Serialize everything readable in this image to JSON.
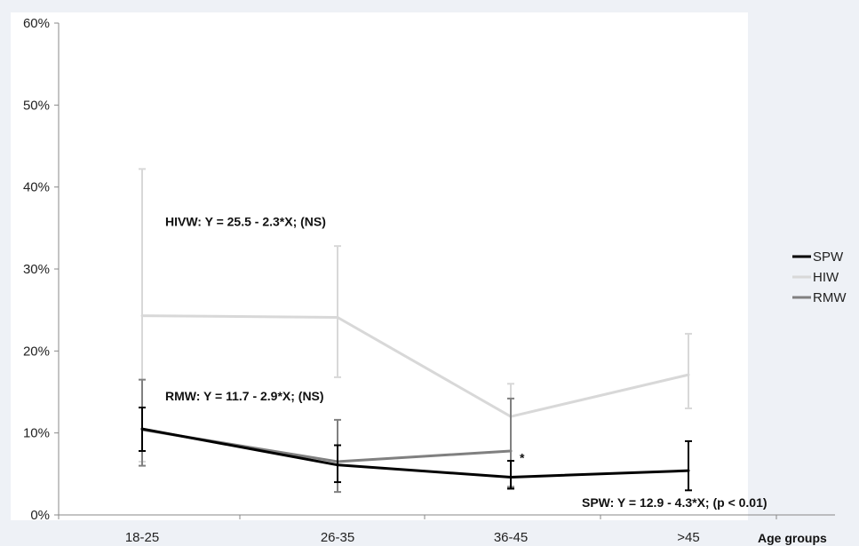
{
  "chart_data": {
    "type": "line",
    "categories": [
      "18-25",
      "26-35",
      "36-45",
      ">45"
    ],
    "xlabel": "Age groups",
    "ylabel": "",
    "ylim": [
      0,
      60
    ],
    "y_ticks": [
      "0%",
      "10%",
      "20%",
      "30%",
      "40%",
      "50%",
      "60%"
    ],
    "grid": false,
    "legend_position": "right",
    "series": [
      {
        "name": "SPW",
        "color": "#000000",
        "values": [
          10.5,
          6.1,
          4.6,
          5.4
        ],
        "error_low": [
          7.8,
          4.0,
          3.2,
          3.0
        ],
        "error_high": [
          13.1,
          8.5,
          6.6,
          9.0
        ]
      },
      {
        "name": "HIW",
        "color": "#d8d8d8",
        "values": [
          24.3,
          24.1,
          12.0,
          17.1
        ],
        "error_low": [
          6.5,
          16.8,
          3.5,
          13.0
        ],
        "error_high": [
          42.2,
          32.8,
          16.0,
          22.1
        ]
      },
      {
        "name": "RMW",
        "color": "#808080",
        "values": [
          10.4,
          6.5,
          7.8,
          null
        ],
        "error_low": [
          6.0,
          2.8,
          3.4,
          null
        ],
        "error_high": [
          16.5,
          11.6,
          14.2,
          null
        ]
      }
    ],
    "annotations": [
      {
        "text": "HIVW: Y = 25.5 - 2.3*X; (NS)",
        "x": "18-25",
        "y": 35.8
      },
      {
        "text": "RMW: Y = 11.7 - 2.9*X; (NS)",
        "x": "18-25",
        "y": 14.5
      },
      {
        "text": "SPW: Y = 12.9 - 4.3*X; (p < 0.01)",
        "x": ">45",
        "y": 1.5
      },
      {
        "text": "*",
        "x": "36-45",
        "y": 7.0
      }
    ]
  }
}
